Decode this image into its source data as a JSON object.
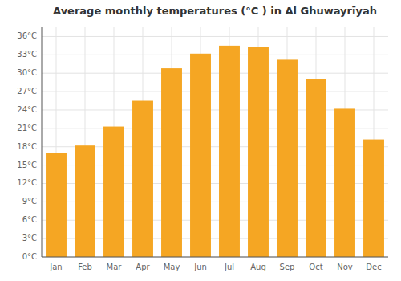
{
  "chart_data": {
    "type": "bar",
    "title": "Average monthly temperatures (°C ) in Al Ghuwayrīyah",
    "categories": [
      "Jan",
      "Feb",
      "Mar",
      "Apr",
      "May",
      "Jun",
      "Jul",
      "Aug",
      "Sep",
      "Oct",
      "Nov",
      "Dec"
    ],
    "values": [
      17.0,
      18.2,
      21.3,
      25.5,
      30.8,
      33.2,
      34.5,
      34.3,
      32.2,
      29.0,
      24.2,
      19.2
    ],
    "color": "#F5A623",
    "ylim": [
      0,
      37.5
    ],
    "yticks": [
      {
        "value": 0,
        "label": "0°C"
      },
      {
        "value": 3,
        "label": "3°C"
      },
      {
        "value": 6,
        "label": "6°C"
      },
      {
        "value": 9,
        "label": "9°C"
      },
      {
        "value": 12,
        "label": "12°C"
      },
      {
        "value": 15,
        "label": "15°C"
      },
      {
        "value": 18,
        "label": "18°C"
      },
      {
        "value": 21,
        "label": "21°C"
      },
      {
        "value": 24,
        "label": "24°C"
      },
      {
        "value": 27,
        "label": "27°C"
      },
      {
        "value": 30,
        "label": "30°C"
      },
      {
        "value": 33,
        "label": "33°C"
      },
      {
        "value": 36,
        "label": "36°C"
      }
    ],
    "grid": true
  }
}
